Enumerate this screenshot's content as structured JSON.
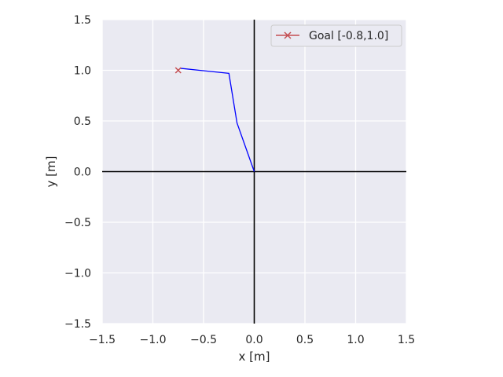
{
  "chart_data": {
    "type": "line",
    "xlabel": "x [m]",
    "ylabel": "y [m]",
    "xlim": [
      -1.5,
      1.5
    ],
    "ylim": [
      -1.5,
      1.5
    ],
    "xticks": [
      -1.5,
      -1.0,
      -0.5,
      0.0,
      0.5,
      1.0,
      1.5
    ],
    "yticks": [
      -1.5,
      -1.0,
      -0.5,
      0.0,
      0.5,
      1.0,
      1.5
    ],
    "xtick_labels": [
      "−1.5",
      "−1.0",
      "−0.5",
      "0.0",
      "0.5",
      "1.0",
      "1.5"
    ],
    "ytick_labels": [
      "−1.5",
      "−1.0",
      "−0.5",
      "0.0",
      "0.5",
      "1.0",
      "1.5"
    ],
    "grid": true,
    "legend_position": "top-right",
    "series": [
      {
        "name": "",
        "color": "#0000ff",
        "points": [
          [
            0.0,
            0.0
          ],
          [
            -0.17,
            0.48
          ],
          [
            -0.25,
            0.97
          ],
          [
            -0.73,
            1.02
          ]
        ]
      },
      {
        "name": "Goal [-0.8,1.0]",
        "color": "#c44e52",
        "marker": "x",
        "points": [
          [
            -0.75,
            1.0
          ]
        ]
      }
    ]
  }
}
